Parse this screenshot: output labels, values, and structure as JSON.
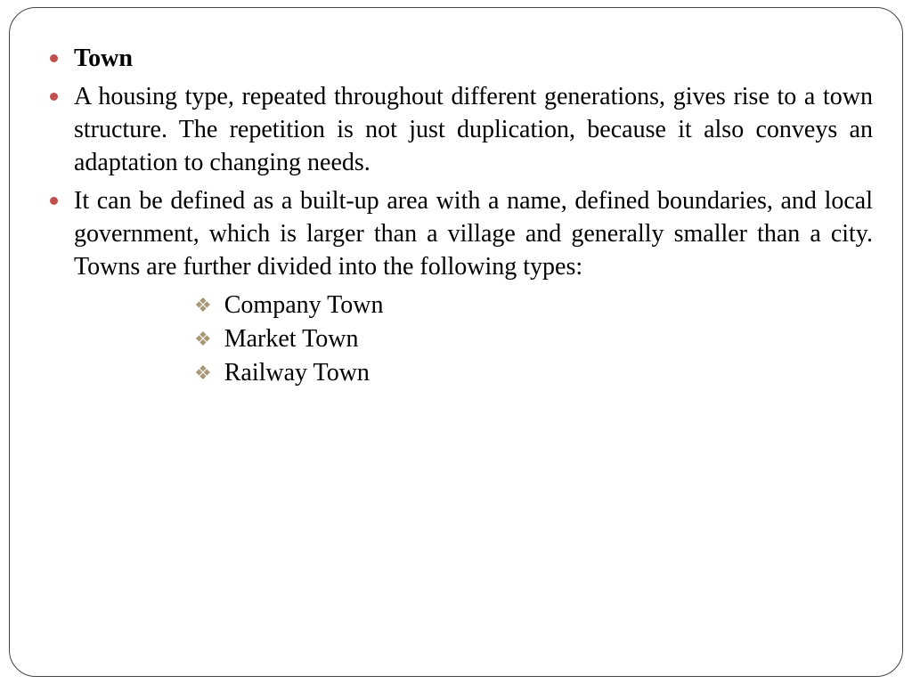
{
  "colors": {
    "bullet": "#c0504d",
    "diamond": "#a99877",
    "text": "#000000",
    "border": "#444444",
    "bg": "#ffffff"
  },
  "main": [
    {
      "text": "Town",
      "bold": true
    },
    {
      "text": "A housing type, repeated throughout different generations, gives rise to a town structure. The repetition is not just duplication, because it also conveys an adaptation to changing needs.",
      "bold": false
    },
    {
      "text": "It can be defined as a built-up area with a name, defined boundaries, and local government, which is larger than a village and generally smaller than a city. Towns are further divided into the following types:",
      "bold": false
    }
  ],
  "sub": [
    "Company Town",
    "Market Town",
    "Railway Town"
  ]
}
